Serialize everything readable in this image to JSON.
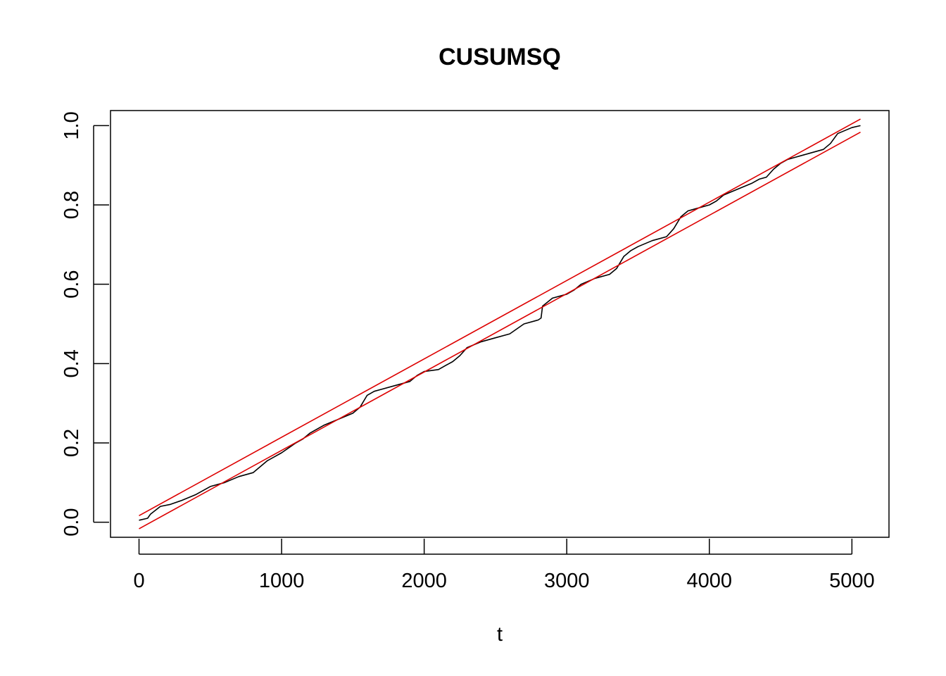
{
  "chart_data": {
    "type": "line",
    "title": "CUSUMSQ",
    "xlabel": "t",
    "ylabel": "",
    "xlim": [
      -200,
      5260
    ],
    "ylim": [
      -0.038,
      1.038
    ],
    "x_ticks": [
      0,
      1000,
      2000,
      3000,
      4000,
      5000
    ],
    "x_tick_labels": [
      "0",
      "1000",
      "2000",
      "3000",
      "4000",
      "5000"
    ],
    "y_ticks": [
      0.0,
      0.2,
      0.4,
      0.6,
      0.8,
      1.0
    ],
    "y_tick_labels": [
      "0.0",
      "0.2",
      "0.4",
      "0.6",
      "0.8",
      "1.0"
    ],
    "grid": false,
    "legend": "none",
    "colors": {
      "series": "#000000",
      "bounds": "#dd0000",
      "axes": "#000000"
    },
    "series": [
      {
        "x": [
          0,
          60,
          80,
          150,
          220,
          300,
          400,
          500,
          600,
          700,
          800,
          900,
          950,
          1000,
          1100,
          1150,
          1200,
          1300,
          1400,
          1500,
          1550,
          1600,
          1650,
          1700,
          1800,
          1900,
          1950,
          2000,
          2100,
          2150,
          2200,
          2250,
          2300,
          2400,
          2500,
          2600,
          2700,
          2800,
          2820,
          2830,
          2900,
          3000,
          3050,
          3100,
          3200,
          3300,
          3350,
          3400,
          3450,
          3500,
          3600,
          3700,
          3750,
          3800,
          3850,
          3900,
          4000,
          4050,
          4100,
          4200,
          4300,
          4350,
          4400,
          4450,
          4500,
          4550,
          4600,
          4700,
          4800,
          4850,
          4900,
          5000,
          5060
        ],
        "y": [
          0.005,
          0.01,
          0.02,
          0.04,
          0.045,
          0.055,
          0.07,
          0.09,
          0.1,
          0.115,
          0.125,
          0.155,
          0.165,
          0.175,
          0.2,
          0.21,
          0.225,
          0.245,
          0.26,
          0.275,
          0.29,
          0.32,
          0.33,
          0.335,
          0.345,
          0.355,
          0.37,
          0.38,
          0.385,
          0.395,
          0.405,
          0.42,
          0.44,
          0.455,
          0.465,
          0.475,
          0.5,
          0.51,
          0.515,
          0.545,
          0.565,
          0.575,
          0.585,
          0.6,
          0.615,
          0.625,
          0.64,
          0.67,
          0.685,
          0.695,
          0.71,
          0.72,
          0.74,
          0.77,
          0.785,
          0.79,
          0.8,
          0.81,
          0.825,
          0.84,
          0.855,
          0.865,
          0.87,
          0.89,
          0.905,
          0.915,
          0.92,
          0.93,
          0.94,
          0.955,
          0.98,
          0.995,
          1.0
        ]
      },
      {
        "x": [
          0,
          5060
        ],
        "y": [
          0.0165,
          1.0165
        ]
      },
      {
        "x": [
          0,
          5060
        ],
        "y": [
          -0.0165,
          0.9835
        ]
      }
    ]
  }
}
